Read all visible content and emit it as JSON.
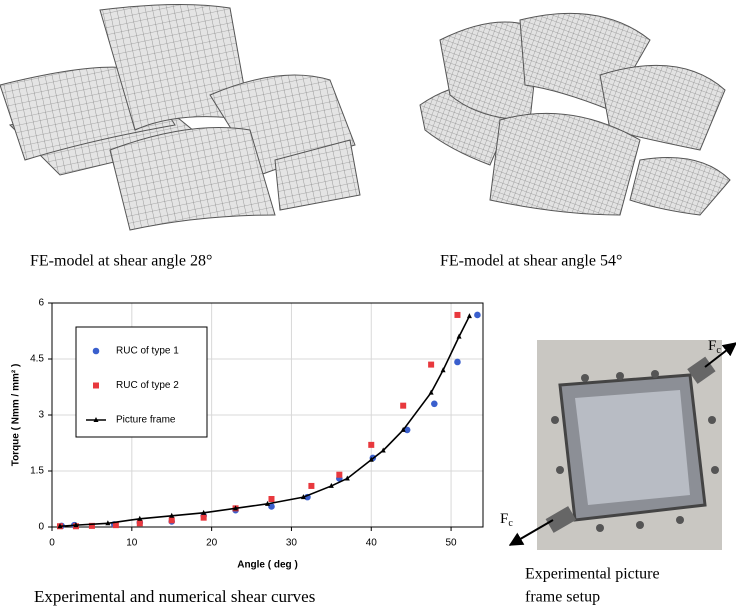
{
  "captions": {
    "left_model": "FE-model at shear angle 28°",
    "right_model": "FE-model at shear angle 54°",
    "chart": "Experimental and numerical shear curves",
    "photo": [
      "Experimental picture",
      "frame setup"
    ]
  },
  "force_label": {
    "main": "F",
    "sub": "c"
  },
  "chart_data": {
    "type": "scatter",
    "x_label": "Angle ( deg )",
    "y_label": "Torque ( Nmm / mm² )",
    "xlim": [
      0,
      54
    ],
    "ylim": [
      0,
      6
    ],
    "xticks": [
      0,
      10,
      20,
      30,
      40,
      50
    ],
    "yticks": [
      0,
      1.5,
      3,
      4.5,
      6
    ],
    "grid": true,
    "legend": "upper left",
    "series": [
      {
        "name": "RUC of type 1",
        "color": "#3a5fcd",
        "marker": "circle",
        "x": [
          1.2,
          2.8,
          7.8,
          11,
          15,
          19,
          23,
          27.5,
          32,
          36,
          40.2,
          44.5,
          47.9,
          50.8,
          53.3
        ],
        "values": [
          0.03,
          0.05,
          0.07,
          0.12,
          0.15,
          0.3,
          0.45,
          0.55,
          0.8,
          1.3,
          1.85,
          2.6,
          3.3,
          4.42,
          5.68
        ]
      },
      {
        "name": "RUC of type 2",
        "color": "#e8383d",
        "marker": "square",
        "x": [
          1,
          3,
          5,
          8,
          11,
          15,
          19,
          23,
          27.5,
          32.5,
          36,
          40,
          44,
          47.5,
          50.8
        ],
        "values": [
          0.02,
          0.02,
          0.03,
          0.05,
          0.1,
          0.18,
          0.25,
          0.5,
          0.75,
          1.1,
          1.4,
          2.2,
          3.25,
          4.35,
          5.68
        ]
      },
      {
        "name": "Picture frame",
        "color": "#000000",
        "marker": "line",
        "x": [
          1,
          3,
          7,
          11,
          15,
          19,
          23,
          27,
          31.5,
          35,
          37,
          40,
          41.5,
          44,
          47.5,
          49,
          51,
          52.3
        ],
        "values": [
          0.02,
          0.05,
          0.1,
          0.22,
          0.3,
          0.38,
          0.5,
          0.62,
          0.8,
          1.1,
          1.3,
          1.8,
          2.05,
          2.6,
          3.6,
          4.2,
          5.1,
          5.65
        ]
      }
    ]
  }
}
